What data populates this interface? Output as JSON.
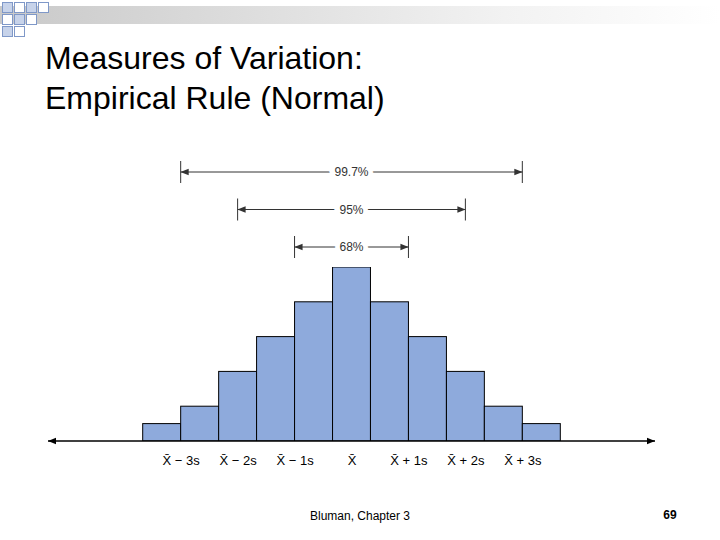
{
  "chart_data": {
    "type": "histogram",
    "title": "Measures of Variation:\nEmpirical Rule (Normal)",
    "bins": [
      -3.667,
      -3,
      -2.333,
      -1.667,
      -1,
      -0.333,
      0.333,
      1,
      1.667,
      2.333,
      3,
      3.667
    ],
    "values": [
      10,
      20,
      40,
      60,
      80,
      100,
      80,
      60,
      40,
      20,
      10
    ],
    "color": "#8eaadc",
    "xlim": [
      -5.33,
      5.33
    ],
    "xticks": [
      {
        "value": -3,
        "label": "X̄ − 3s"
      },
      {
        "value": -2,
        "label": "X̄ − 2s"
      },
      {
        "value": -1,
        "label": "X̄ − 1s"
      },
      {
        "value": 0,
        "label": "X̄"
      },
      {
        "value": 1,
        "label": "X̄ + 1s"
      },
      {
        "value": 2,
        "label": "X̄ + 2s"
      },
      {
        "value": 3,
        "label": "X̄ + 3s"
      }
    ],
    "ylim": [
      0,
      100
    ],
    "tick_labels": "x",
    "intervals": [
      {
        "label": "99.7%",
        "from": -3,
        "to": 3
      },
      {
        "label": "95%",
        "from": -2,
        "to": 2
      },
      {
        "label": "68%",
        "from": -1,
        "to": 1
      }
    ]
  },
  "footer": "Bluman, Chapter 3",
  "page_number": 69
}
